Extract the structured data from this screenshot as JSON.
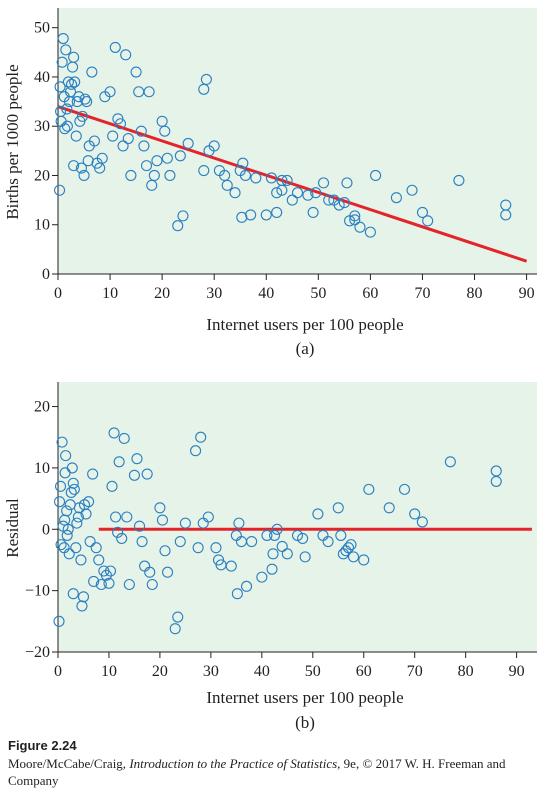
{
  "chart_data": [
    {
      "type": "scatter",
      "subplot_label": "(a)",
      "xlabel": "Internet users per 100 people",
      "ylabel": "Births per 1000 people",
      "xlim": [
        0,
        92
      ],
      "ylim": [
        0,
        54
      ],
      "xticks": [
        0,
        10,
        20,
        30,
        40,
        50,
        60,
        70,
        80,
        90
      ],
      "yticks": [
        0,
        10,
        20,
        30,
        40,
        50
      ],
      "background": "#e6f3e9",
      "marker_color": "#2a7fc0",
      "line_color": "#e3242b",
      "regression_line": {
        "x": [
          0,
          90
        ],
        "y": [
          34.0,
          2.6
        ]
      },
      "points": [
        [
          0.3,
          17
        ],
        [
          0.4,
          38
        ],
        [
          0.5,
          33
        ],
        [
          0.6,
          31
        ],
        [
          0.8,
          43
        ],
        [
          1,
          47.8
        ],
        [
          1.2,
          36
        ],
        [
          1.3,
          29.5
        ],
        [
          1.5,
          45.5
        ],
        [
          1.7,
          33.5
        ],
        [
          1.8,
          30
        ],
        [
          2,
          39
        ],
        [
          2.2,
          35
        ],
        [
          2.4,
          37
        ],
        [
          2.6,
          38.5
        ],
        [
          2.8,
          42
        ],
        [
          3,
          44
        ],
        [
          3,
          22
        ],
        [
          3.2,
          39
        ],
        [
          3.5,
          28
        ],
        [
          3.7,
          35
        ],
        [
          4,
          36
        ],
        [
          4.2,
          31
        ],
        [
          4.5,
          21.5
        ],
        [
          4.7,
          32
        ],
        [
          5,
          20
        ],
        [
          5.2,
          35.5
        ],
        [
          5.5,
          35
        ],
        [
          5.8,
          23
        ],
        [
          6,
          26
        ],
        [
          6.5,
          41
        ],
        [
          7,
          27
        ],
        [
          7.5,
          22.5
        ],
        [
          8,
          21.5
        ],
        [
          8.5,
          23.5
        ],
        [
          9,
          36
        ],
        [
          10,
          37
        ],
        [
          10.5,
          28
        ],
        [
          11,
          46
        ],
        [
          11.5,
          31.5
        ],
        [
          12,
          30.5
        ],
        [
          12.5,
          26
        ],
        [
          13,
          44.5
        ],
        [
          13.5,
          27.5
        ],
        [
          14,
          20
        ],
        [
          15,
          41
        ],
        [
          15.5,
          37
        ],
        [
          16,
          29
        ],
        [
          16.5,
          26
        ],
        [
          17,
          22
        ],
        [
          17.5,
          37
        ],
        [
          18,
          18
        ],
        [
          18.5,
          20
        ],
        [
          19,
          23
        ],
        [
          20,
          31
        ],
        [
          20.5,
          29
        ],
        [
          21,
          23.5
        ],
        [
          21.5,
          20
        ],
        [
          23,
          9.8
        ],
        [
          23.5,
          24
        ],
        [
          24,
          11.8
        ],
        [
          25,
          26.5
        ],
        [
          28,
          21
        ],
        [
          28,
          37.5
        ],
        [
          28.5,
          39.5
        ],
        [
          29,
          25
        ],
        [
          30,
          26
        ],
        [
          31,
          21
        ],
        [
          32,
          20
        ],
        [
          32.5,
          18
        ],
        [
          34,
          16.5
        ],
        [
          35,
          21
        ],
        [
          35.3,
          11.5
        ],
        [
          35.5,
          22.5
        ],
        [
          36,
          20
        ],
        [
          37,
          12
        ],
        [
          38,
          19.5
        ],
        [
          40,
          12
        ],
        [
          41,
          19.5
        ],
        [
          42,
          12.5
        ],
        [
          42,
          16.5
        ],
        [
          43,
          17
        ],
        [
          43,
          19
        ],
        [
          44,
          19
        ],
        [
          45,
          15
        ],
        [
          46,
          16.5
        ],
        [
          48,
          16
        ],
        [
          49,
          12.5
        ],
        [
          49.5,
          16.5
        ],
        [
          51,
          18.5
        ],
        [
          52,
          15
        ],
        [
          53,
          15
        ],
        [
          54,
          14
        ],
        [
          55,
          14.5
        ],
        [
          55.5,
          18.5
        ],
        [
          56,
          10.8
        ],
        [
          57,
          11
        ],
        [
          57,
          11.8
        ],
        [
          58,
          9.5
        ],
        [
          60,
          8.5
        ],
        [
          61,
          20
        ],
        [
          65,
          15.5
        ],
        [
          68,
          17
        ],
        [
          70,
          12.5
        ],
        [
          71,
          10.8
        ],
        [
          77,
          19
        ],
        [
          86,
          14
        ],
        [
          86,
          12
        ]
      ]
    },
    {
      "type": "scatter",
      "subplot_label": "(b)",
      "xlabel": "Internet users per 100 people",
      "ylabel": "Residual",
      "xlim": [
        0,
        94
      ],
      "ylim": [
        -20,
        24
      ],
      "xticks": [
        0,
        10,
        20,
        30,
        40,
        50,
        60,
        70,
        80,
        90
      ],
      "yticks": [
        -20,
        -10,
        0,
        10,
        20
      ],
      "background": "#e6f3e9",
      "marker_color": "#2a7fc0",
      "line_color": "#e3242b",
      "regression_line": {
        "x": [
          8,
          93
        ],
        "y": [
          0,
          0
        ]
      },
      "points": [
        [
          0.2,
          -15
        ],
        [
          0.3,
          4.5
        ],
        [
          0.5,
          7
        ],
        [
          0.6,
          -2.5
        ],
        [
          0.8,
          14.2
        ],
        [
          1,
          0.5
        ],
        [
          1.2,
          -3
        ],
        [
          1.3,
          1.5
        ],
        [
          1.4,
          9.2
        ],
        [
          1.5,
          12
        ],
        [
          1.7,
          3
        ],
        [
          1.8,
          -1
        ],
        [
          2,
          0
        ],
        [
          2.2,
          -4
        ],
        [
          2.4,
          4
        ],
        [
          2.6,
          6
        ],
        [
          2.8,
          10
        ],
        [
          3,
          7.5
        ],
        [
          3,
          -10.5
        ],
        [
          3.2,
          6.5
        ],
        [
          3.5,
          -3
        ],
        [
          3.7,
          1
        ],
        [
          4,
          2
        ],
        [
          4.2,
          3.5
        ],
        [
          4.5,
          -5
        ],
        [
          4.7,
          -12.5
        ],
        [
          5,
          -11
        ],
        [
          5.2,
          4
        ],
        [
          5.5,
          2.5
        ],
        [
          6,
          4.5
        ],
        [
          6.3,
          -2
        ],
        [
          6.8,
          9
        ],
        [
          7,
          -8.5
        ],
        [
          7.5,
          -3
        ],
        [
          8,
          -5
        ],
        [
          8.5,
          -9
        ],
        [
          9,
          -6.8
        ],
        [
          9.5,
          -7.5
        ],
        [
          10,
          -8.8
        ],
        [
          10.3,
          -6.8
        ],
        [
          10.6,
          7
        ],
        [
          11,
          15.7
        ],
        [
          11.3,
          2
        ],
        [
          11.7,
          -0.5
        ],
        [
          12,
          11
        ],
        [
          12.5,
          -1.5
        ],
        [
          13,
          14.8
        ],
        [
          13.5,
          2
        ],
        [
          14,
          -9
        ],
        [
          15,
          8.8
        ],
        [
          15.5,
          11.5
        ],
        [
          16,
          0.5
        ],
        [
          16.5,
          -2
        ],
        [
          17,
          -6
        ],
        [
          17.5,
          9
        ],
        [
          18,
          -7
        ],
        [
          18.5,
          -9
        ],
        [
          20,
          3.5
        ],
        [
          20.5,
          1.5
        ],
        [
          21,
          -3.5
        ],
        [
          21.5,
          -7
        ],
        [
          23,
          -16.2
        ],
        [
          23.5,
          -14.3
        ],
        [
          24,
          -2
        ],
        [
          25,
          1
        ],
        [
          27,
          12.8
        ],
        [
          27.5,
          -3
        ],
        [
          28,
          15
        ],
        [
          28.5,
          1
        ],
        [
          29.5,
          2
        ],
        [
          31,
          -3
        ],
        [
          31.5,
          -5
        ],
        [
          32,
          -5.8
        ],
        [
          34,
          -6
        ],
        [
          35,
          -1
        ],
        [
          35.2,
          -10.5
        ],
        [
          35.5,
          1
        ],
        [
          36,
          -2
        ],
        [
          37,
          -9.3
        ],
        [
          38,
          -2
        ],
        [
          40,
          -7.8
        ],
        [
          41,
          -1
        ],
        [
          42,
          -6.5
        ],
        [
          42.2,
          -4
        ],
        [
          42.5,
          -1
        ],
        [
          43,
          0
        ],
        [
          44,
          -2.8
        ],
        [
          45,
          -4
        ],
        [
          47,
          -1
        ],
        [
          48,
          -1.5
        ],
        [
          48.5,
          -4.5
        ],
        [
          51,
          2.5
        ],
        [
          52,
          -1
        ],
        [
          53,
          -2
        ],
        [
          55,
          3.5
        ],
        [
          55.5,
          -1
        ],
        [
          56,
          -4
        ],
        [
          56.5,
          -3.5
        ],
        [
          57,
          -3
        ],
        [
          57.5,
          -2.5
        ],
        [
          58,
          -4.5
        ],
        [
          60,
          -5
        ],
        [
          61,
          6.5
        ],
        [
          65,
          3.5
        ],
        [
          68,
          6.5
        ],
        [
          70,
          2.5
        ],
        [
          71.5,
          1.2
        ],
        [
          77,
          11
        ],
        [
          86,
          9.5
        ],
        [
          86,
          7.8
        ]
      ]
    }
  ],
  "caption": {
    "figure_label": "Figure 2.24",
    "credit_before_title": "Moore/McCabe/Craig, ",
    "book_title": "Introduction to the Practice of Statistics",
    "credit_after_title": ", 9e, © 2017 W. H. Freeman and Company"
  }
}
